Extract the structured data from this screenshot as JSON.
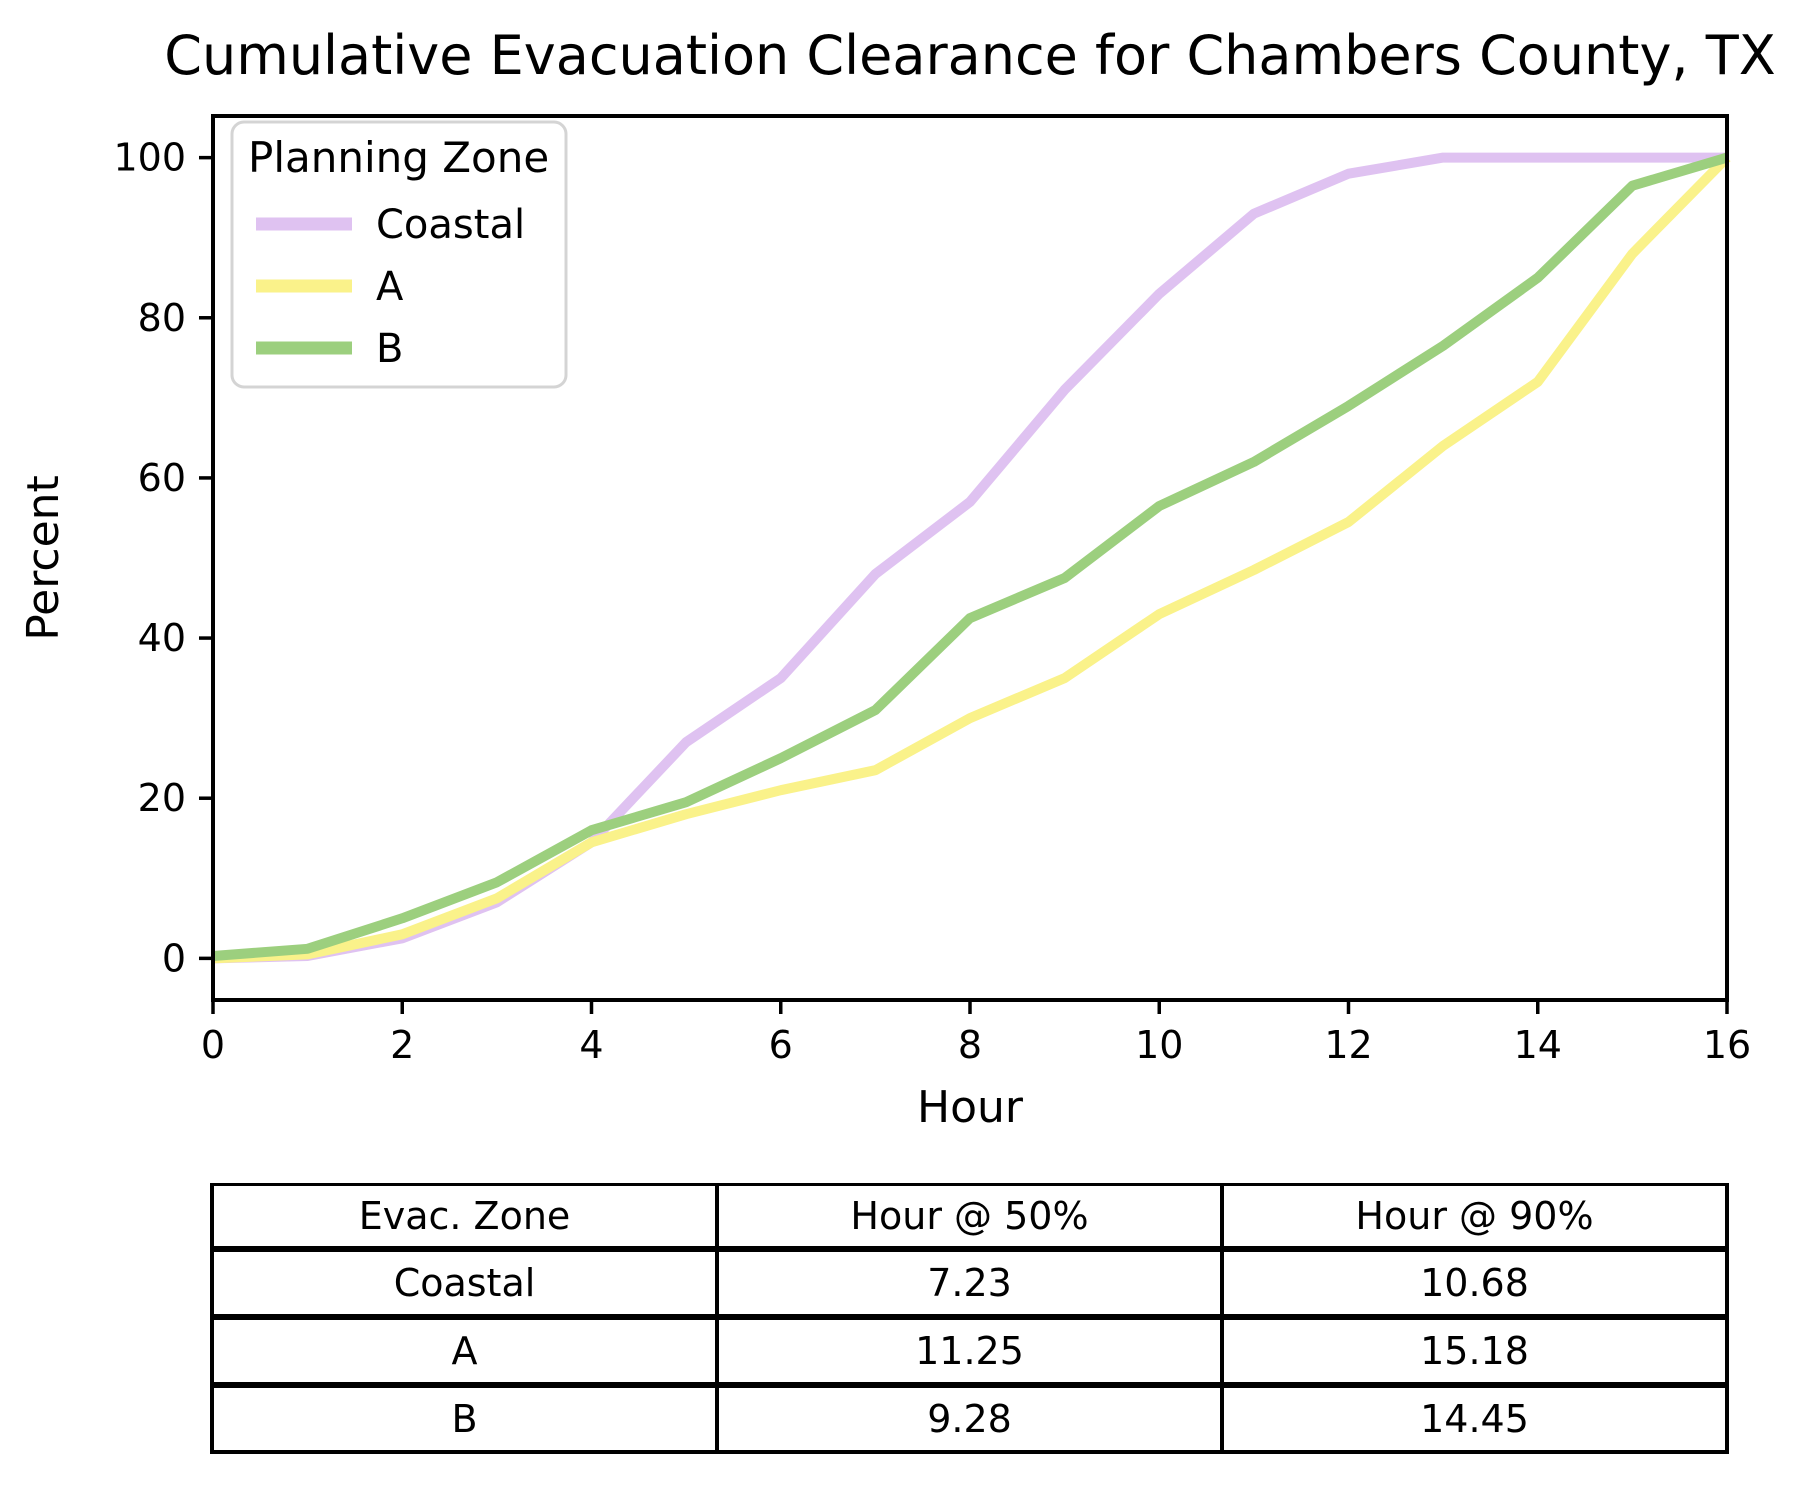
{
  "figure": {
    "background_color": "#ffffff",
    "axis_color": "#000000",
    "legend_border_color": "#d4d4d4"
  },
  "chart_data": {
    "type": "line",
    "title": "Cumulative Evacuation Clearance for Chambers County, TX",
    "xlabel": "Hour",
    "ylabel": "Percent",
    "xlim": [
      0,
      16
    ],
    "ylim": [
      -5.2,
      105.2
    ],
    "xticks": [
      0,
      2,
      4,
      6,
      8,
      10,
      12,
      14,
      16
    ],
    "yticks": [
      0,
      20,
      40,
      60,
      80,
      100
    ],
    "grid": false,
    "legend": {
      "title": "Planning Zone",
      "position": "upper-left"
    },
    "x": [
      0,
      1,
      2,
      3,
      4,
      5,
      6,
      7,
      8,
      9,
      10,
      11,
      12,
      13,
      14,
      15,
      16
    ],
    "series": [
      {
        "name": "Coastal",
        "color": "#dfc2f1",
        "values": [
          0,
          0.3,
          2.5,
          7,
          14.5,
          27,
          35,
          48,
          57,
          71,
          83,
          93,
          98,
          100,
          100,
          100,
          100
        ]
      },
      {
        "name": "A",
        "color": "#faf28a",
        "values": [
          0,
          0.5,
          3,
          7.5,
          14.5,
          18,
          21,
          23.5,
          30,
          35,
          43,
          48.5,
          54.5,
          64,
          72,
          88,
          100
        ]
      },
      {
        "name": "B",
        "color": "#9ccf7e",
        "values": [
          0.3,
          1.2,
          5,
          9.5,
          16,
          19.5,
          25,
          31,
          42.5,
          47.5,
          56.5,
          62,
          69,
          76.5,
          85,
          96.5,
          100
        ]
      }
    ]
  },
  "table": {
    "headers": [
      "Evac. Zone",
      "Hour @ 50%",
      "Hour @ 90%"
    ],
    "rows": [
      {
        "zone": "Coastal",
        "hour_50": "7.23",
        "hour_90": "10.68"
      },
      {
        "zone": "A",
        "hour_50": "11.25",
        "hour_90": "15.18"
      },
      {
        "zone": "B",
        "hour_50": "9.28",
        "hour_90": "14.45"
      }
    ]
  }
}
